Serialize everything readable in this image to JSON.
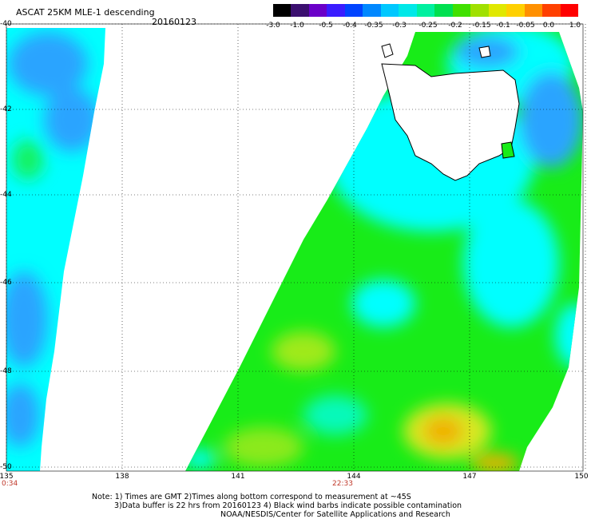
{
  "title": "ASCAT 25KM MLE-1 descending",
  "date": "20160123",
  "colorbar": {
    "labels": [
      "-3.0",
      "-1.0",
      "-0.5",
      "-0.4",
      "-0.35",
      "-0.3",
      "-0.25",
      "-0.2",
      "-0.15",
      "-0.1",
      "-0.05",
      "0.0",
      "1.0"
    ],
    "colors": [
      "#000000",
      "#3b0f6f",
      "#6a00c8",
      "#3a1cff",
      "#0044ff",
      "#0088ff",
      "#00c8ff",
      "#00e8e8",
      "#00f0a0",
      "#00e050",
      "#40e000",
      "#a0e000",
      "#e0e800",
      "#ffd000",
      "#ff9000",
      "#ff4000",
      "#ff0000"
    ]
  },
  "map": {
    "latitudes": [
      "-40",
      "-42",
      "-44",
      "-46",
      "-48",
      "-50"
    ],
    "longitudes": [
      "135",
      "138",
      "141",
      "144",
      "147",
      "150"
    ],
    "colors": {
      "swath_cyan": "#00ffff",
      "swath_green": "#18ec18",
      "swath_blue": "#2aa4ff",
      "swath_yellow": "#d8e820",
      "swath_orange": "#f0b000",
      "land": "#ffffff",
      "grid": "#000000"
    }
  },
  "times": {
    "left": "0:34",
    "center": "22:33"
  },
  "notes": [
    "Note: 1) Times are GMT 2)Times along bottom correspond to measurement at ~45S",
    "3)Data buffer is 22 hrs from 20160123 4) Black wind barbs indicate possible contamination",
    "NOAA/NESDIS/Center for Satellite Applications and Research"
  ]
}
